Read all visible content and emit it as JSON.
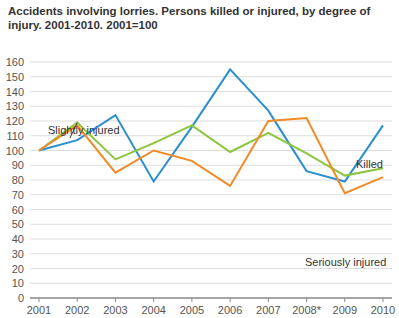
{
  "chart_data": {
    "type": "line",
    "title": "Accidents involving lorries. Persons killed or injured, by degree of injury. 2001-2010. 2001=100",
    "categories": [
      "2001",
      "2002",
      "2003",
      "2004",
      "2005",
      "2006",
      "2007",
      "2008*",
      "2009",
      "2010"
    ],
    "series": [
      {
        "name": "Killed",
        "color": "#2a8fd0",
        "values": [
          100,
          107,
          124,
          79,
          116,
          155,
          127,
          86,
          79,
          117
        ]
      },
      {
        "name": "Slightly injured",
        "color": "#8cc63f",
        "values": [
          100,
          119,
          94,
          105,
          117,
          99,
          112,
          98,
          83,
          88
        ]
      },
      {
        "name": "Seriously injured",
        "color": "#f28a26",
        "values": [
          100,
          117,
          85,
          100,
          93,
          76,
          120,
          122,
          71,
          82
        ]
      }
    ],
    "ylim": [
      0,
      160
    ],
    "yticks": [
      0,
      10,
      20,
      30,
      40,
      50,
      60,
      70,
      80,
      90,
      100,
      110,
      120,
      130,
      140,
      150,
      160
    ],
    "grid": true
  }
}
